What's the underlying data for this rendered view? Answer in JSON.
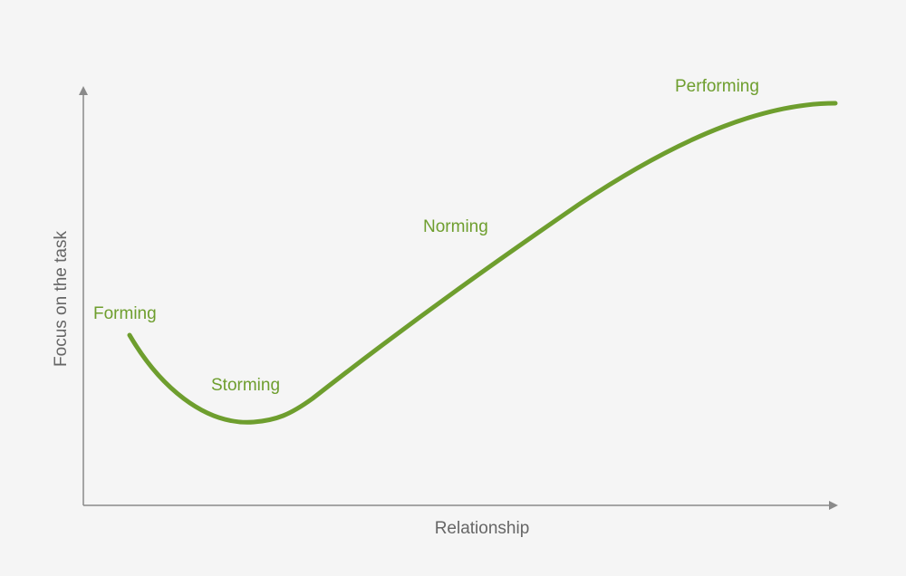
{
  "axes": {
    "x_label": "Relationship",
    "y_label": "Focus on the task"
  },
  "stages": [
    {
      "label": "Forming"
    },
    {
      "label": "Storming"
    },
    {
      "label": "Norming"
    },
    {
      "label": "Performing"
    }
  ]
}
